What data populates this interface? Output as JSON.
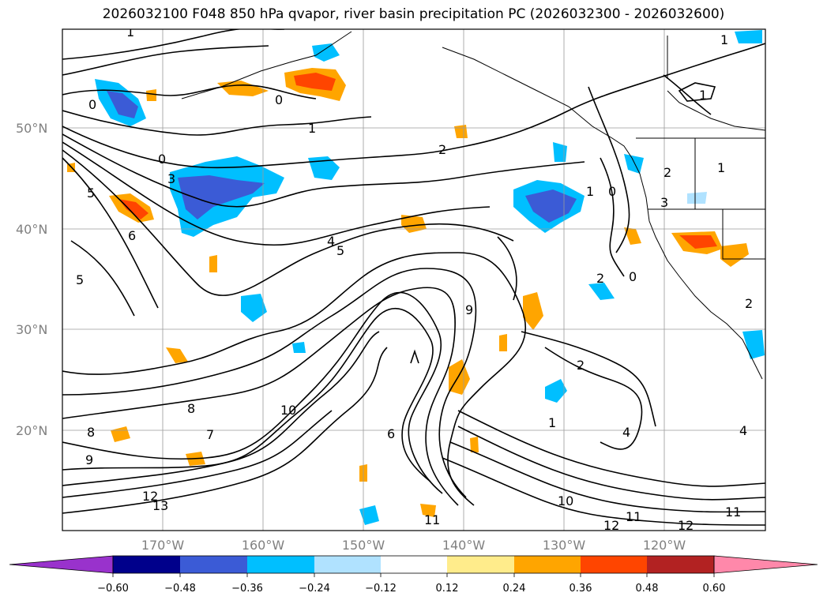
{
  "title": "2026032100 F048 850 hPa qvapor, river basin precipitation PC (2026032300 - 2026032600)",
  "lat_labels": [
    "50°N",
    "40°N",
    "30°N",
    "20°N"
  ],
  "lon_labels": [
    "170°W",
    "160°W",
    "150°W",
    "140°W",
    "130°W",
    "120°W"
  ],
  "contour_labels": [
    "1",
    "1",
    "0",
    "1",
    "0",
    "1",
    "2",
    "0",
    "3",
    "5",
    "6",
    "4",
    "5",
    "2",
    "2",
    "0",
    "3",
    "5",
    "8",
    "7",
    "8",
    "9",
    "10",
    "12",
    "13",
    "11",
    "6",
    "1",
    "4",
    "10",
    "11",
    "12",
    "12",
    "11",
    "1",
    "2",
    "0",
    "2",
    "4",
    "1",
    "9"
  ],
  "colorbar": {
    "ticks": [
      "−0.60",
      "−0.48",
      "−0.36",
      "−0.24",
      "−0.12",
      "0.12",
      "0.24",
      "0.36",
      "0.48",
      "0.60"
    ],
    "colors": [
      "#9932cc",
      "#00008b",
      "#3b5bd6",
      "#00bfff",
      "#b0e2ff",
      "#ffffff",
      "#ffec8b",
      "#ffa500",
      "#ff4500",
      "#b22222",
      "#ff88aa"
    ]
  }
}
